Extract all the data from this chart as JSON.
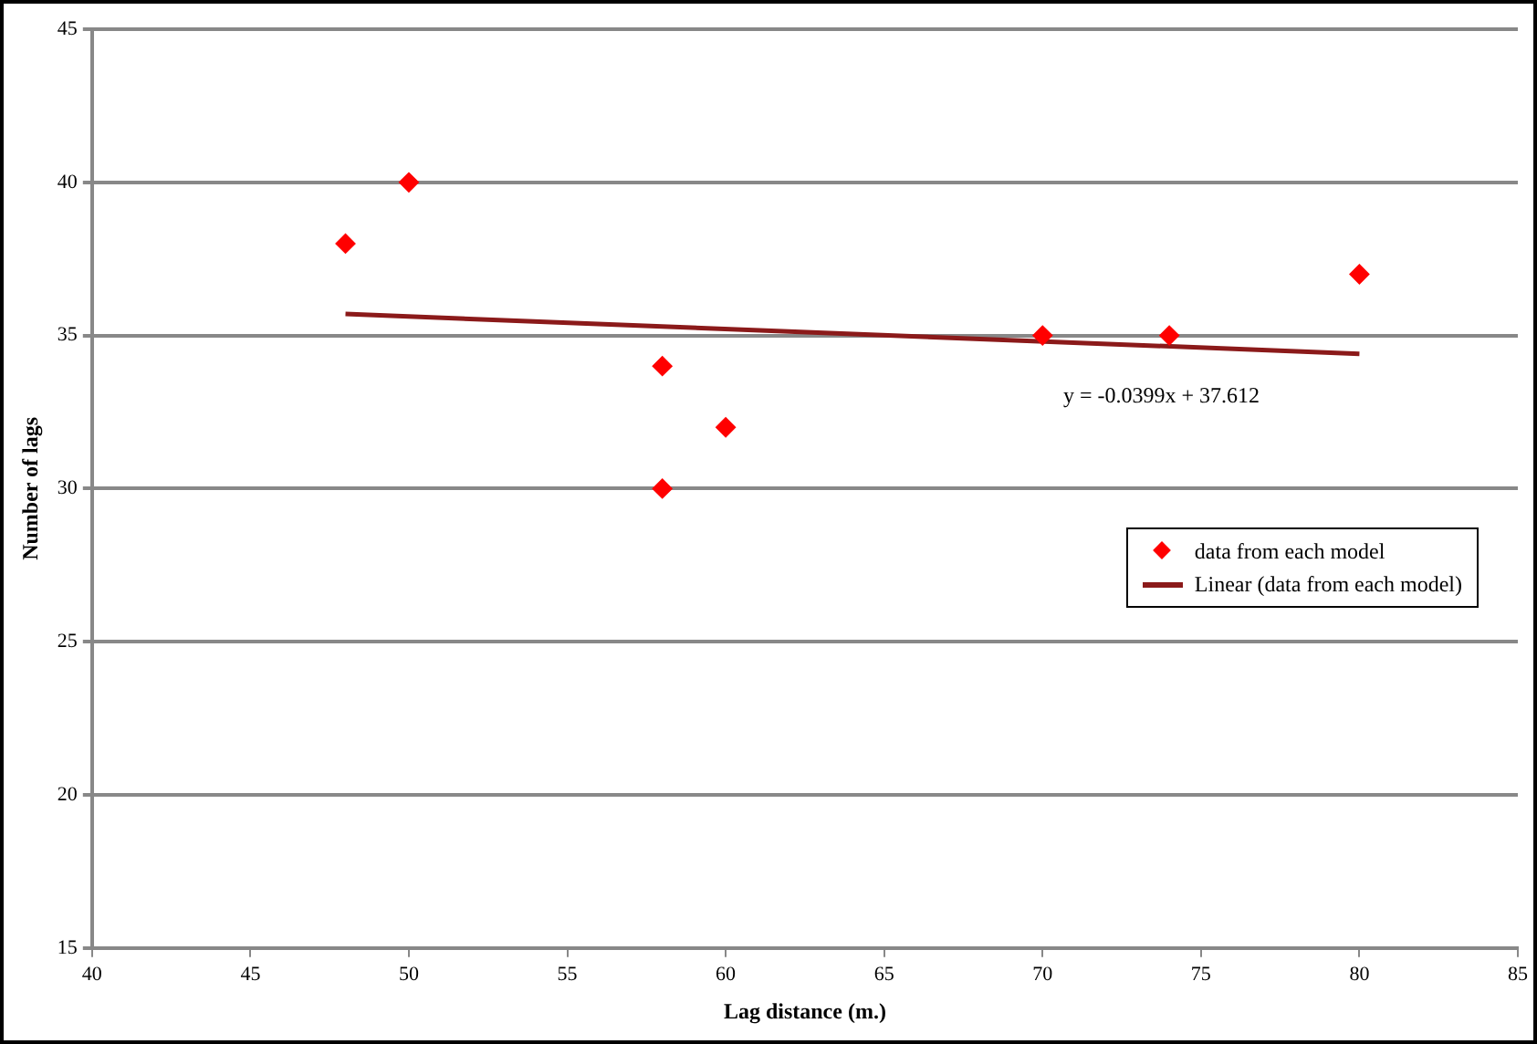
{
  "chart_data": {
    "type": "scatter",
    "xlabel": "Lag distance (m.)",
    "ylabel": "Number of lags",
    "xlim": [
      40,
      85
    ],
    "xticks": [
      40,
      45,
      50,
      55,
      60,
      65,
      70,
      75,
      80,
      85
    ],
    "ylim": [
      15,
      45
    ],
    "yticks": [
      15,
      20,
      25,
      30,
      35,
      40,
      45
    ],
    "grid": "y",
    "legend": "right",
    "marker": "diamond",
    "series": [
      {
        "name": "data from each model",
        "color": "#ff0000",
        "x": [
          48,
          50,
          58,
          58,
          60,
          70,
          74,
          80
        ],
        "values": [
          38,
          40,
          34,
          30,
          32,
          35,
          35,
          37
        ]
      },
      {
        "name": "Linear (data from each model)",
        "type": "line",
        "marker": "none",
        "color": "#8b1a1a",
        "x": [
          48,
          80
        ],
        "values": [
          35.7,
          34.4
        ]
      }
    ],
    "annotations": [
      "y = -0.0399x + 37.612"
    ]
  }
}
